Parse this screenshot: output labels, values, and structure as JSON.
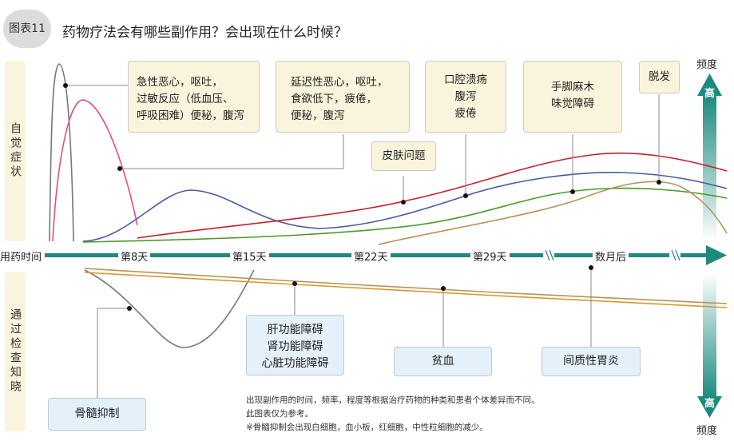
{
  "header": {
    "figure_label": "图表11",
    "title": "药物疗法会有哪些副作用？会出现在什么时候？"
  },
  "side_labels": {
    "top": "自觉症状",
    "bottom": "通过检查知晓"
  },
  "timeline": {
    "start_label": "用药时间",
    "ticks": [
      "第8天",
      "第15天",
      "第22天",
      "第29天",
      "数月后"
    ]
  },
  "frequency": {
    "label_top": "频度",
    "high_top": "高",
    "label_bottom": "频度",
    "high_bottom": "高"
  },
  "top_boxes": [
    {
      "lines": [
        "急性恶心，呕吐，",
        "过敏反应（低血压、",
        "呼吸困难）便秘，腹泻"
      ]
    },
    {
      "lines": [
        "延迟性恶心，呕吐，",
        "食欲低下，疲倦，",
        "便秘，腹泻"
      ]
    },
    {
      "lines": [
        "皮肤问题"
      ]
    },
    {
      "lines": [
        "口腔溃疡",
        "腹泻",
        "疲倦"
      ]
    },
    {
      "lines": [
        "手脚麻木",
        "味觉障碍"
      ]
    },
    {
      "lines": [
        "脱发"
      ]
    }
  ],
  "bottom_boxes": [
    {
      "lines": [
        "骨髓抑制"
      ]
    },
    {
      "lines": [
        "肝功能障碍",
        "肾功能障碍",
        "心脏功能障碍"
      ]
    },
    {
      "lines": [
        "贫血"
      ]
    },
    {
      "lines": [
        "间质性胃炎"
      ]
    }
  ],
  "notes": [
    "出现副作用的时间，频率，程度等根据治疗药物的种类和患者个体差异而不同。",
    "此图表仅为参考。",
    "※骨髓抑制会出现白细胞，血小板，红细胞，中性粒细胞的减少。"
  ],
  "colors": {
    "teal": "#1d8a7e",
    "box_yellow": "#fbf4dc",
    "box_blue": "#e4f0fa",
    "curve_gray": "#777777",
    "curve_pink": "#e0507a",
    "curve_navy": "#4a5aa0",
    "curve_red": "#c81e2a",
    "curve_green": "#4a9a2a",
    "curve_tan": "#b8925a",
    "curve_orange": "#d39a2a"
  }
}
